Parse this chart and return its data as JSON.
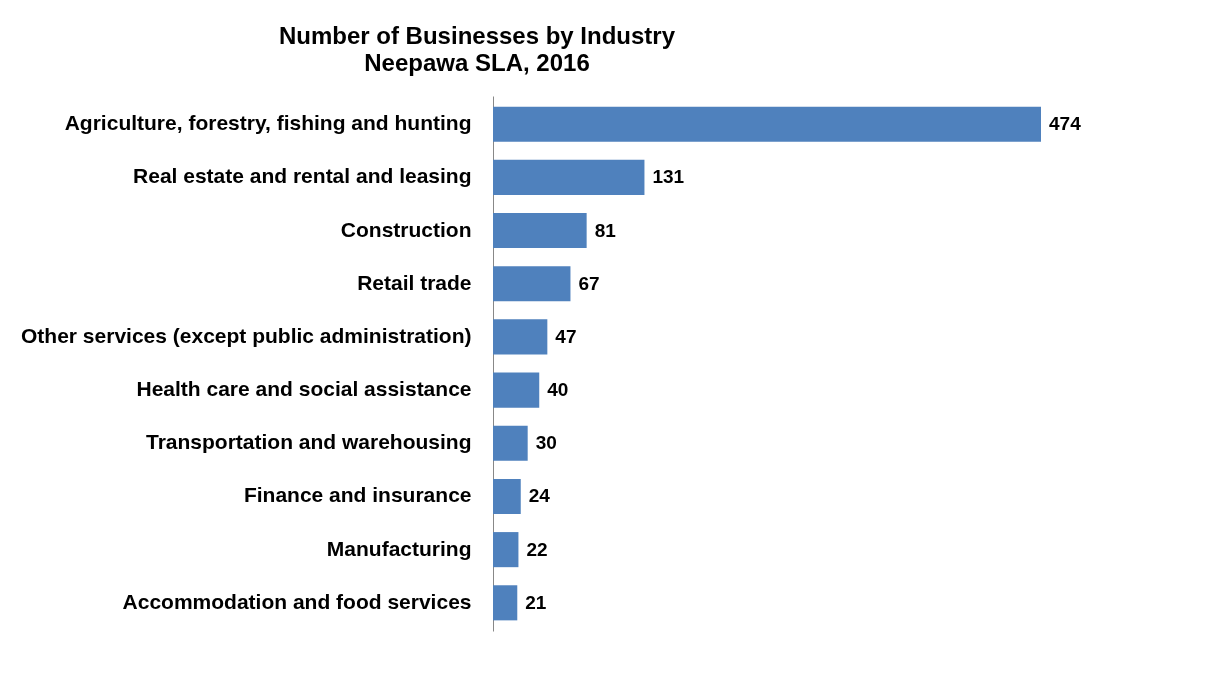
{
  "chart_data": {
    "type": "bar",
    "orientation": "horizontal",
    "title": "Number of Businesses by Industry",
    "subtitle": "Neepawa SLA, 2016",
    "categories": [
      "Agriculture, forestry, fishing and hunting",
      "Real estate and rental and leasing",
      "Construction",
      "Retail trade",
      "Other services (except public administration)",
      "Health care and social assistance",
      "Transportation and warehousing",
      "Finance and insurance",
      "Manufacturing",
      "Accommodation and food services"
    ],
    "values": [
      474,
      131,
      81,
      67,
      47,
      40,
      30,
      24,
      22,
      21
    ],
    "color": "#4f81bd",
    "data_labels": true
  }
}
